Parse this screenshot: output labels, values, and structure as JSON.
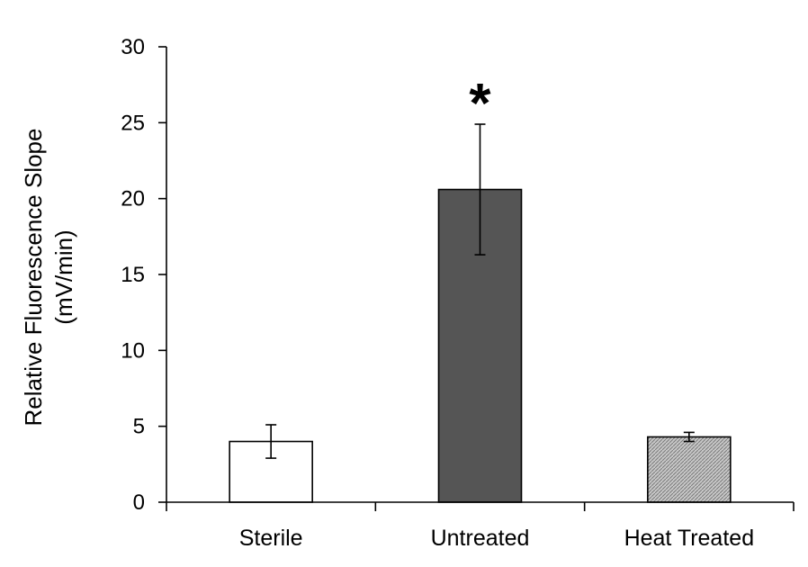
{
  "chart_data": {
    "type": "bar",
    "categories": [
      "Sterile",
      "Untreated",
      "Heat Treated"
    ],
    "values": [
      4.0,
      20.6,
      4.3
    ],
    "errors": [
      1.1,
      4.3,
      0.3
    ],
    "colors": [
      "#ffffff",
      "#555555",
      "#b9b9b9"
    ],
    "hatched": [
      false,
      false,
      true
    ],
    "title": "",
    "xlabel": "",
    "ylabel_line1": "Relative Fluorescence Slope",
    "ylabel_line2": "(mV/min)",
    "ylim": [
      0,
      30
    ],
    "yticks": [
      0,
      5,
      10,
      15,
      20,
      25,
      30
    ],
    "annotations": [
      {
        "category": "Untreated",
        "text": "*"
      }
    ],
    "grid": false,
    "legend": "none"
  }
}
